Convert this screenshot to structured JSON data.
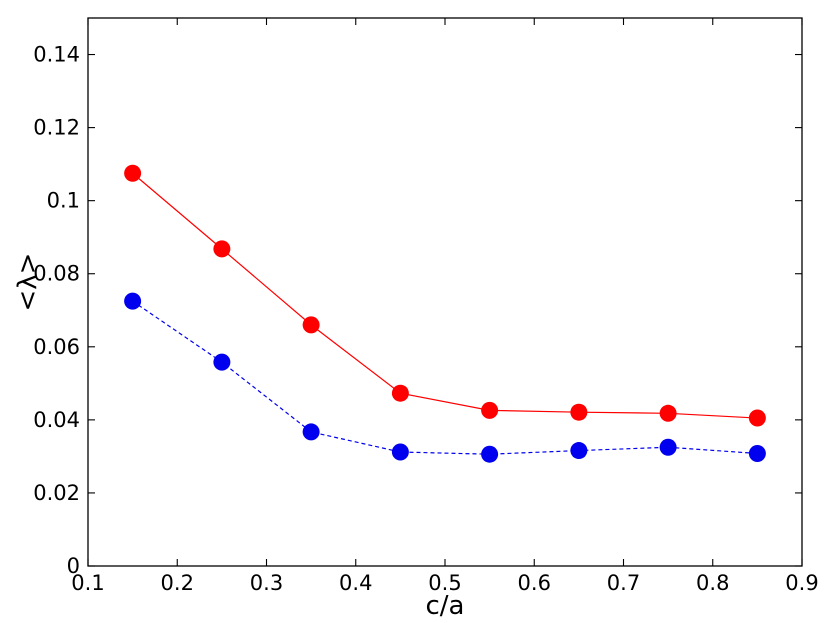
{
  "chart_data": {
    "type": "line",
    "title": "",
    "xlabel": "c/a",
    "ylabel": "<λ>",
    "xlim": [
      0.1,
      0.9
    ],
    "ylim": [
      0,
      0.15
    ],
    "xticks": [
      "0.1",
      "0.2",
      "0.3",
      "0.4",
      "0.5",
      "0.6",
      "0.7",
      "0.8",
      "0.9"
    ],
    "yticks": [
      "0",
      "0.02",
      "0.04",
      "0.06",
      "0.08",
      "0.1",
      "0.12",
      "0.14"
    ],
    "grid": false,
    "legend": "none",
    "x": [
      0.15,
      0.25,
      0.35,
      0.45,
      0.55,
      0.65,
      0.75,
      0.85
    ],
    "series": [
      {
        "values": [
          0.1075,
          0.0868,
          0.066,
          0.0473,
          0.0426,
          0.0421,
          0.0418,
          0.0405
        ],
        "color": "#ff0000",
        "line_style": "solid",
        "marker": "circle"
      },
      {
        "values": [
          0.0725,
          0.0558,
          0.0367,
          0.0312,
          0.0306,
          0.0316,
          0.0325,
          0.0308
        ],
        "color": "#0000ee",
        "line_style": "dashed",
        "marker": "circle"
      }
    ]
  }
}
